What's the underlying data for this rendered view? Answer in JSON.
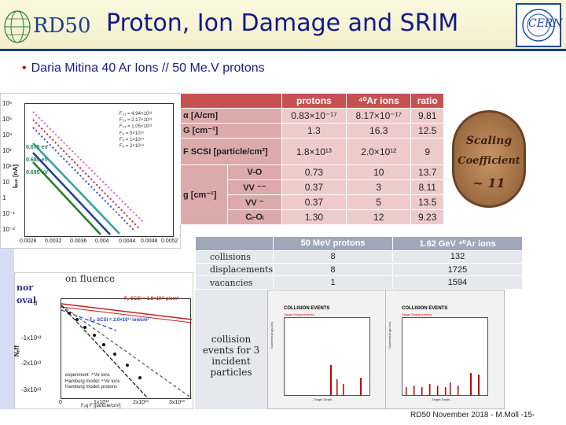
{
  "header": {
    "title": "Proton, Ion Damage and SRIM",
    "logo_left": "RD50",
    "logo_right": "CERN"
  },
  "bullet": "Daria Mitina   40 Ar Ions  // 50 Me.V protons",
  "plot1": {
    "y_ticks": [
      "10⁶",
      "10⁵",
      "10⁴",
      "10³",
      "10²",
      "10",
      "1",
      "10⁻¹",
      "10⁻²"
    ],
    "labels": [
      "0.675 eV",
      "0.685 eV",
      "0.695 eV"
    ],
    "ylabel": "Iₚₑₙ [nA]",
    "x_ticks": [
      "0.0028",
      "0.0032",
      "0.0036",
      "0.004",
      "0.0044",
      "0.0048",
      "0.0052"
    ],
    "legend": [
      "F₂₃ = 4.94×10¹³",
      "F₂₃ = 2.17×10¹³",
      "F₂₃ = 1.05×10¹³",
      "Fₚ = 5×10¹³",
      "Fₚ = 1×10¹⁴",
      "Fₚ = 2×10¹⁴"
    ]
  },
  "table1": {
    "headers": [
      "",
      "protons",
      "⁴⁰Ar ions",
      "ratio"
    ],
    "rows": [
      {
        "label": "α [A/cm]",
        "protons": "0.83×10⁻¹⁷",
        "ar": "8.17×10⁻¹⁷",
        "ratio": "9.81"
      },
      {
        "label": "G [cm⁻¹]",
        "protons": "1.3",
        "ar": "16.3",
        "ratio": "12.5"
      },
      {
        "label": "F SCSI [particle/cm²]",
        "protons": "1.8×10¹³",
        "ar": "2.0×10¹²",
        "ratio": "9"
      },
      {
        "group": "g [cm⁻¹]",
        "label": "V-O",
        "protons": "0.73",
        "ar": "10",
        "ratio": "13.7"
      },
      {
        "label": "VV ⁻⁻",
        "protons": "0.37",
        "ar": "3",
        "ratio": "8.11"
      },
      {
        "label": "VV ⁻",
        "protons": "0.37",
        "ar": "5",
        "ratio": "13.5"
      },
      {
        "label": "Cᵢ-Oᵢ",
        "protons": "1.30",
        "ar": "12",
        "ratio": "9.23"
      }
    ]
  },
  "badge": {
    "line1": "Scaling",
    "line2": "Coefficient",
    "line3": "~ 11"
  },
  "table2": {
    "headers": [
      "",
      "50 MeV protons",
      "1.62 GeV ⁴⁰Ar ions"
    ],
    "rows": [
      {
        "label": "collisions",
        "p": "8",
        "ar": "132"
      },
      {
        "label": "displacements",
        "p": "8",
        "ar": "1725"
      },
      {
        "label": "vacancies",
        "p": "1",
        "ar": "1594"
      }
    ],
    "caption": "collision events for 3 incident particles"
  },
  "collision_plots": {
    "title": "COLLISION EVENTS",
    "subtitle": "Target Displacements",
    "ylabel": "Number/(Angs-Ion)",
    "xlabel": "- Target Depth -",
    "right_ticks": [
      "1e-12",
      "1e-10",
      "1e-8",
      "1e-6",
      "1e-4",
      "1e-2",
      "1",
      "100",
      "1e4",
      "1e6"
    ]
  },
  "plot2": {
    "head": "on fluence",
    "side1": "nor",
    "side2": "oval",
    "y_ticks": [
      "0",
      "-1x10¹³",
      "-2x10¹³",
      "-3x10¹³"
    ],
    "x_ticks": [
      "0",
      "1x10¹³",
      "2x10¹³",
      "3x10¹³"
    ],
    "ylabel": "Nₑff",
    "annot1": "Fₚ SCSI = 1.8×10¹³ p/cm²",
    "annot2": "Fₐᵣ SCSI = 2.0×10¹² ion/cm²",
    "legend": [
      "experiment: ⁴⁰Ar ions",
      "Hamburg model: ⁴⁰Ar ions",
      "Hamburg model: protons"
    ],
    "xlabel": "Fₑq  F [particle/cm²]"
  },
  "footer": "RD50 November 2018 - M.Moll -15-"
}
